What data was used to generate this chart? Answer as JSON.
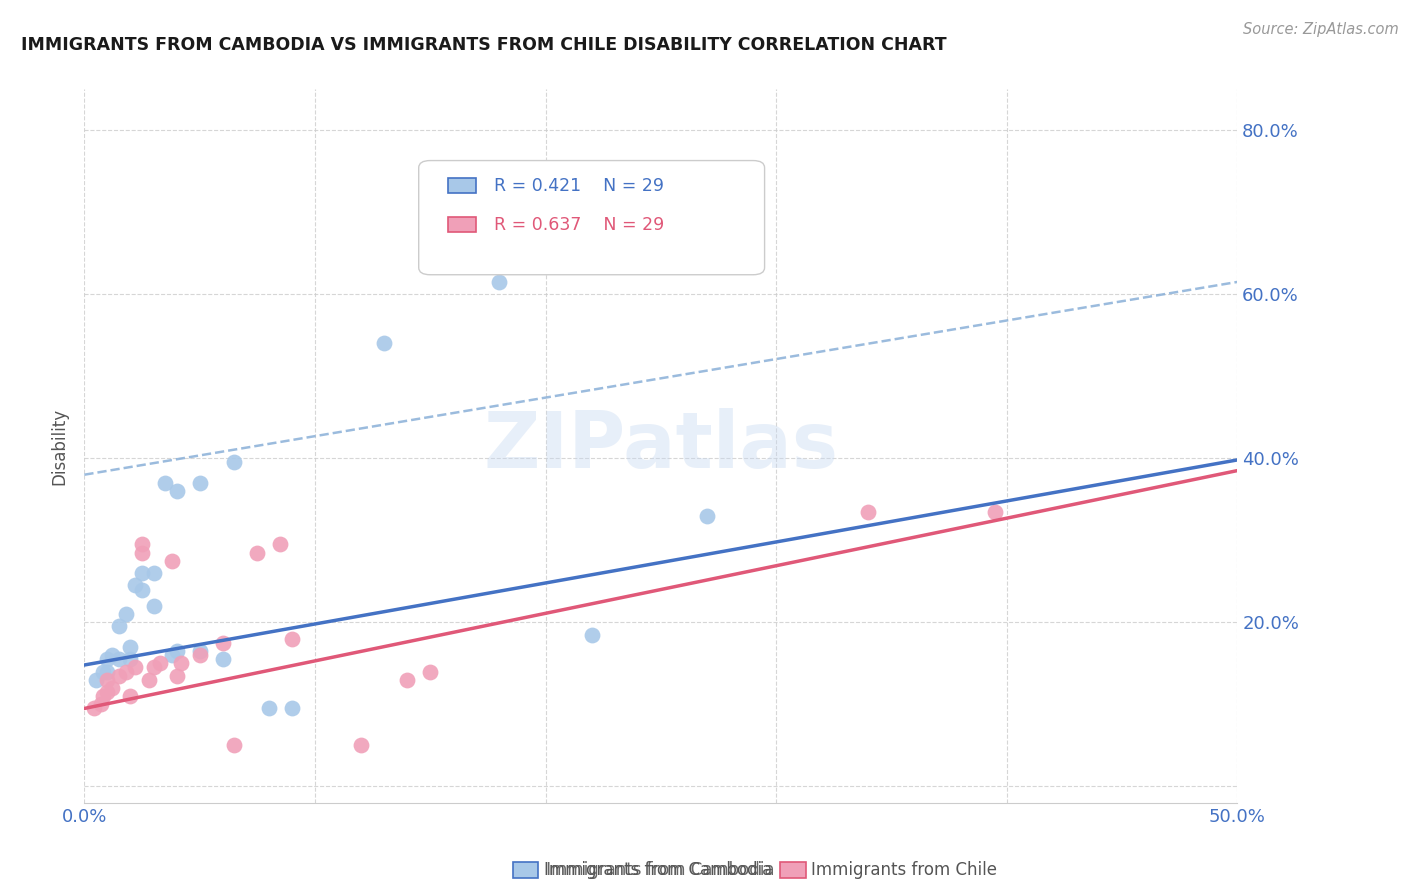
{
  "title": "IMMIGRANTS FROM CAMBODIA VS IMMIGRANTS FROM CHILE DISABILITY CORRELATION CHART",
  "source": "Source: ZipAtlas.com",
  "ylabel": "Disability",
  "y_ticks": [
    0.0,
    0.2,
    0.4,
    0.6,
    0.8
  ],
  "x_range": [
    0.0,
    0.5
  ],
  "y_range": [
    -0.02,
    0.85
  ],
  "legend_r1": "0.421",
  "legend_n1": "29",
  "legend_r2": "0.637",
  "legend_n2": "29",
  "legend_label1": "Immigrants from Cambodia",
  "legend_label2": "Immigrants from Chile",
  "watermark": "ZIPatlas",
  "cambodia_color": "#a8c8e8",
  "chile_color": "#f0a0b8",
  "cambodia_line_color": "#4472c4",
  "chile_line_color": "#e05878",
  "dashed_line_color": "#8ab0d8",
  "cambodia_x": [
    0.005,
    0.008,
    0.01,
    0.01,
    0.012,
    0.015,
    0.015,
    0.018,
    0.02,
    0.02,
    0.022,
    0.025,
    0.025,
    0.03,
    0.03,
    0.035,
    0.038,
    0.04,
    0.04,
    0.05,
    0.05,
    0.06,
    0.065,
    0.08,
    0.09,
    0.13,
    0.18,
    0.22,
    0.27
  ],
  "cambodia_y": [
    0.13,
    0.14,
    0.14,
    0.155,
    0.16,
    0.155,
    0.195,
    0.21,
    0.155,
    0.17,
    0.245,
    0.24,
    0.26,
    0.22,
    0.26,
    0.37,
    0.16,
    0.36,
    0.165,
    0.165,
    0.37,
    0.155,
    0.395,
    0.095,
    0.095,
    0.54,
    0.615,
    0.185,
    0.33
  ],
  "chile_x": [
    0.004,
    0.007,
    0.008,
    0.01,
    0.01,
    0.012,
    0.015,
    0.018,
    0.02,
    0.022,
    0.025,
    0.025,
    0.028,
    0.03,
    0.033,
    0.038,
    0.04,
    0.042,
    0.05,
    0.06,
    0.065,
    0.075,
    0.085,
    0.09,
    0.12,
    0.14,
    0.15,
    0.34,
    0.395
  ],
  "chile_y": [
    0.095,
    0.1,
    0.11,
    0.115,
    0.13,
    0.12,
    0.135,
    0.14,
    0.11,
    0.145,
    0.285,
    0.295,
    0.13,
    0.145,
    0.15,
    0.275,
    0.135,
    0.15,
    0.16,
    0.175,
    0.05,
    0.285,
    0.295,
    0.18,
    0.05,
    0.13,
    0.14,
    0.335,
    0.335
  ],
  "blue_line_x0": 0.0,
  "blue_line_y0": 0.148,
  "blue_line_x1": 0.5,
  "blue_line_y1": 0.398,
  "pink_line_x0": 0.0,
  "pink_line_y0": 0.095,
  "pink_line_x1": 0.5,
  "pink_line_y1": 0.385,
  "dash_line_x0": 0.0,
  "dash_line_y0": 0.38,
  "dash_line_x1": 0.5,
  "dash_line_y1": 0.615,
  "background_color": "#ffffff",
  "grid_color": "#cccccc"
}
